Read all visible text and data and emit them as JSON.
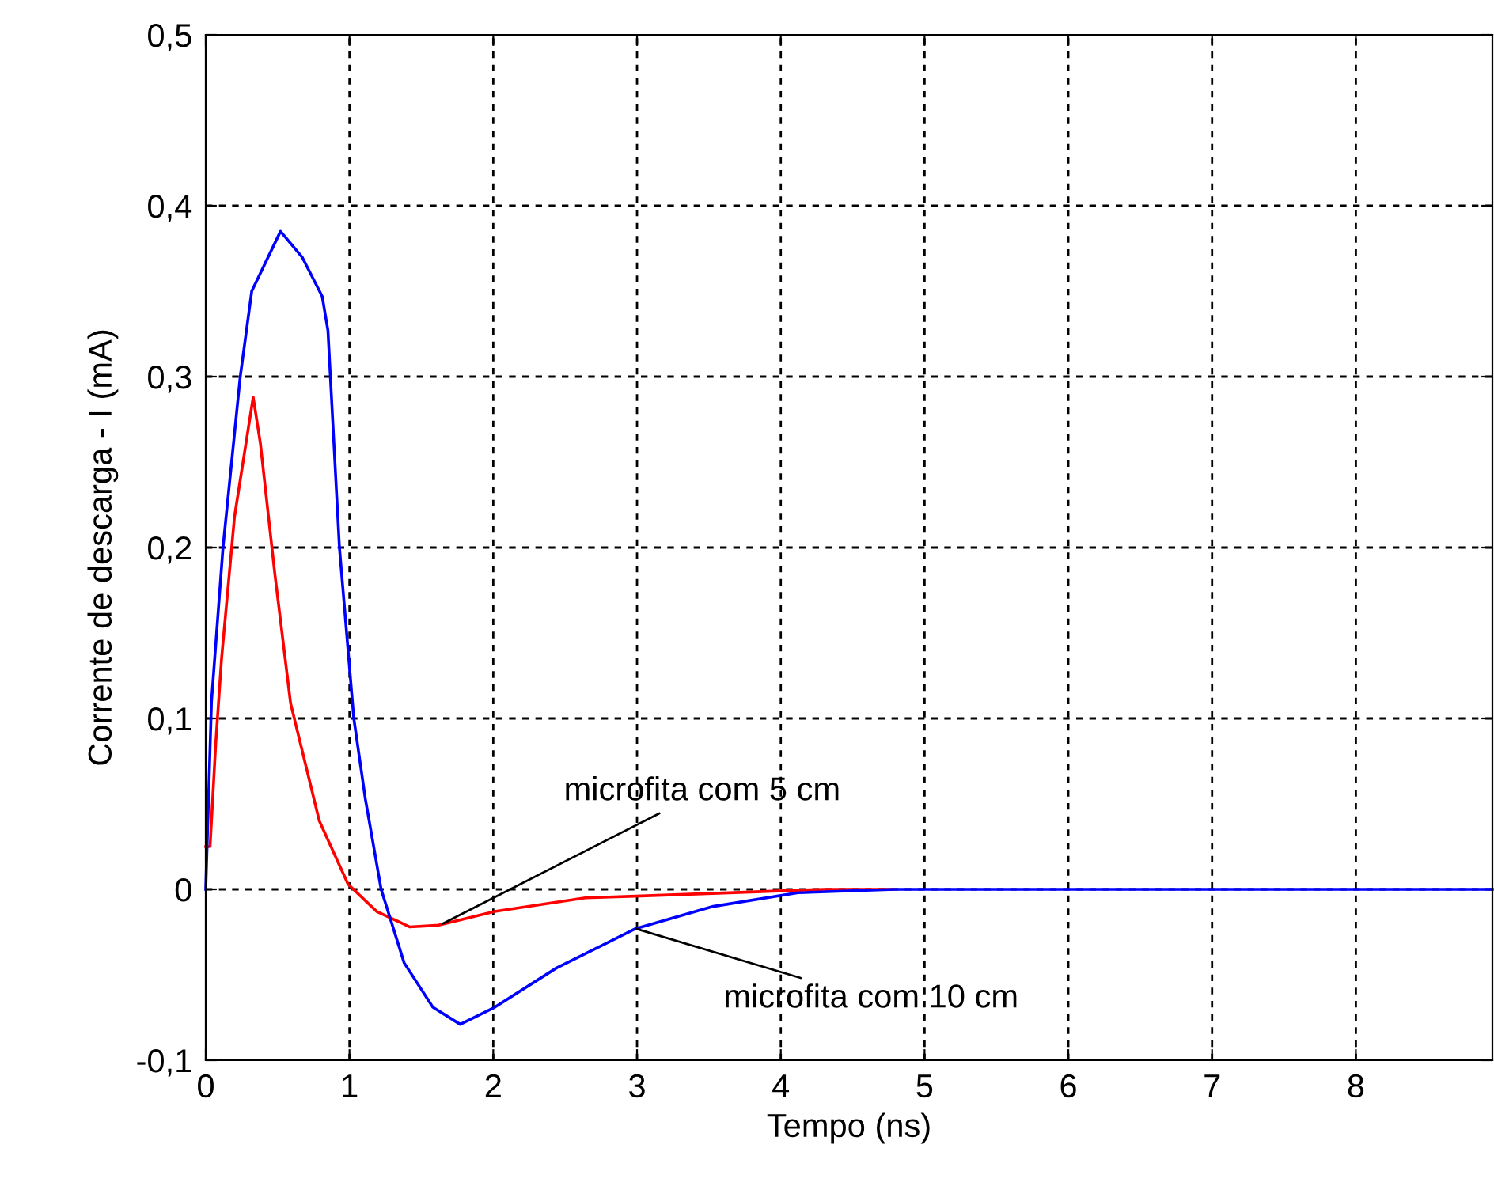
{
  "chart_data": {
    "type": "line",
    "xlabel": "Tempo (ns)",
    "ylabel": "Corrente de descarga - I (mA)",
    "series": [
      {
        "color": "#ff0000",
        "x": [
          0,
          0.03,
          0.07,
          0.11,
          0.2,
          0.33,
          0.38,
          0.48,
          0.59,
          0.79,
          0.99,
          1.19,
          1.42,
          1.62,
          2.01,
          2.64,
          2.99,
          4.3,
          4.77
        ],
        "values": [
          0.025,
          0.025,
          0.086,
          0.135,
          0.218,
          0.288,
          0.261,
          0.185,
          0.109,
          0.04,
          0.003,
          -0.013,
          -0.022,
          -0.021,
          -0.013,
          -0.005,
          -0.004,
          0,
          0
        ]
      },
      {
        "color": "#0000ff",
        "x": [
          0,
          0.04,
          0.12,
          0.24,
          0.32,
          0.52,
          0.67,
          0.81,
          0.85,
          0.93,
          1.03,
          1.11,
          1.22,
          1.38,
          1.58,
          1.77,
          2.01,
          2.44,
          2.99,
          3.53,
          4.12,
          4.79,
          8.95
        ],
        "values": [
          0,
          0.11,
          0.2,
          0.3,
          0.35,
          0.385,
          0.37,
          0.347,
          0.327,
          0.2,
          0.1,
          0.053,
          0,
          -0.043,
          -0.069,
          -0.079,
          -0.069,
          -0.046,
          -0.023,
          -0.01,
          -0.002,
          0,
          0
        ]
      }
    ],
    "annotations": [
      {
        "text": "microfita com 5 cm",
        "x": 1.65,
        "y": -0.02
      },
      {
        "text": "microfita com 10 cm",
        "x": 2.99,
        "y": -0.023
      }
    ],
    "xlim": [
      0,
      8.95
    ],
    "xticks": [
      0,
      1,
      2,
      3,
      4,
      5,
      6,
      7,
      8
    ],
    "ylim": [
      -0.1,
      0.5
    ],
    "yticks": [
      {
        "value": -0.1,
        "label": "-0,1"
      },
      0,
      {
        "value": 0.1,
        "label": "0,1"
      },
      {
        "value": 0.2,
        "label": "0,2"
      },
      {
        "value": 0.3,
        "label": "0,3"
      },
      {
        "value": 0.4,
        "label": "0,4"
      },
      {
        "value": 0.5,
        "label": "0,5"
      }
    ],
    "grid": true,
    "legend": false,
    "marker": "none",
    "line_style": "solid"
  }
}
